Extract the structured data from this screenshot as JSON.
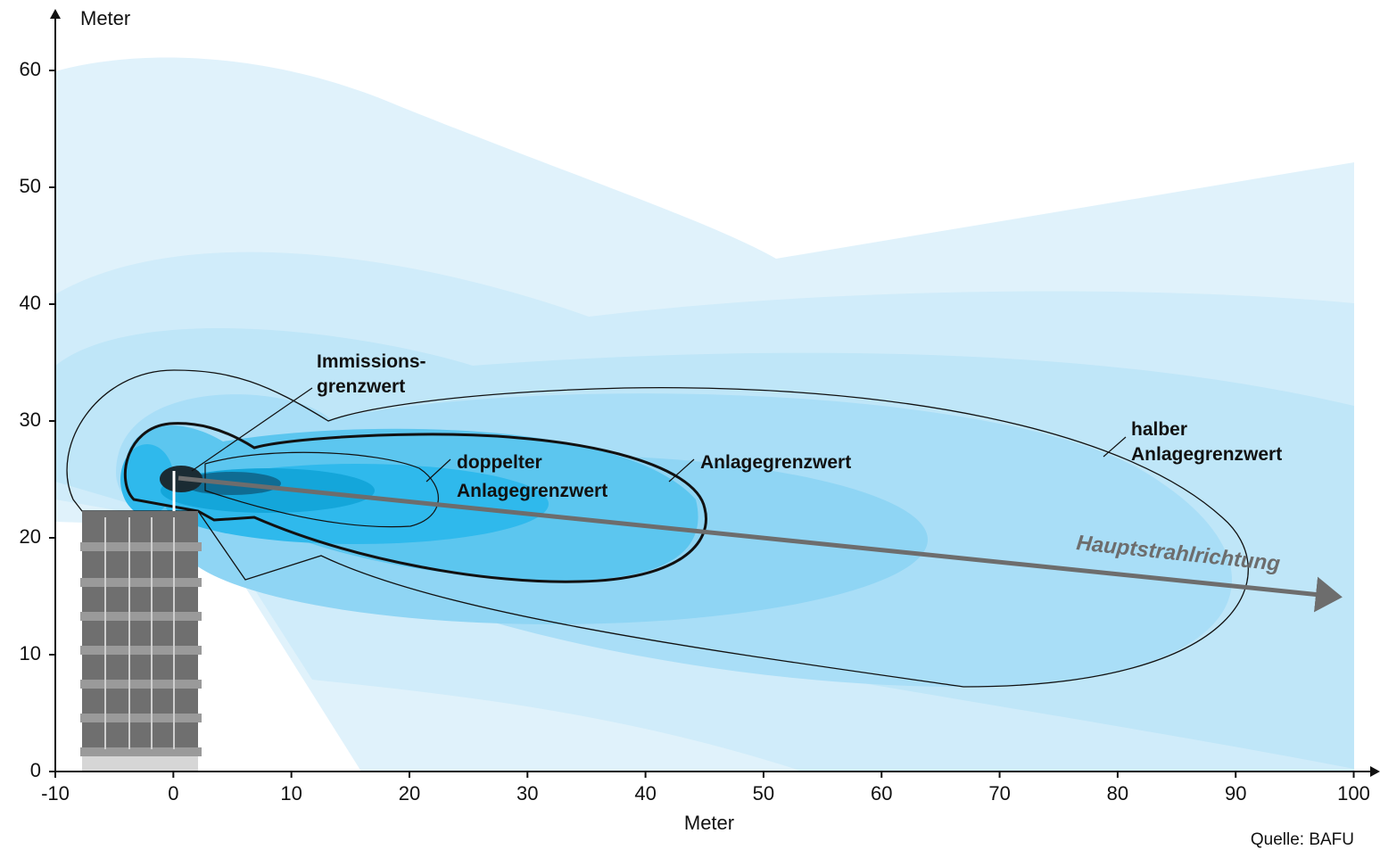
{
  "axes": {
    "x_label": "Meter",
    "y_label": "Meter",
    "xlim": [
      -10,
      102
    ],
    "ylim": [
      0,
      65
    ],
    "xticks": [
      -10,
      0,
      10,
      20,
      30,
      40,
      50,
      60,
      70,
      80,
      90,
      100
    ],
    "yticks": [
      0,
      10,
      20,
      30,
      40,
      50,
      60
    ]
  },
  "annotations": [
    {
      "lines": [
        "Immissions-",
        "grenzwert"
      ]
    },
    {
      "lines": [
        "doppelter",
        "Anlagegrenzwert"
      ]
    },
    {
      "lines": [
        "Anlagegrenzwert"
      ]
    },
    {
      "lines": [
        "halber",
        "Anlagegrenzwert"
      ]
    }
  ],
  "direction_label": "Hauptstrahlrichtung",
  "source": "Quelle: BAFU"
}
